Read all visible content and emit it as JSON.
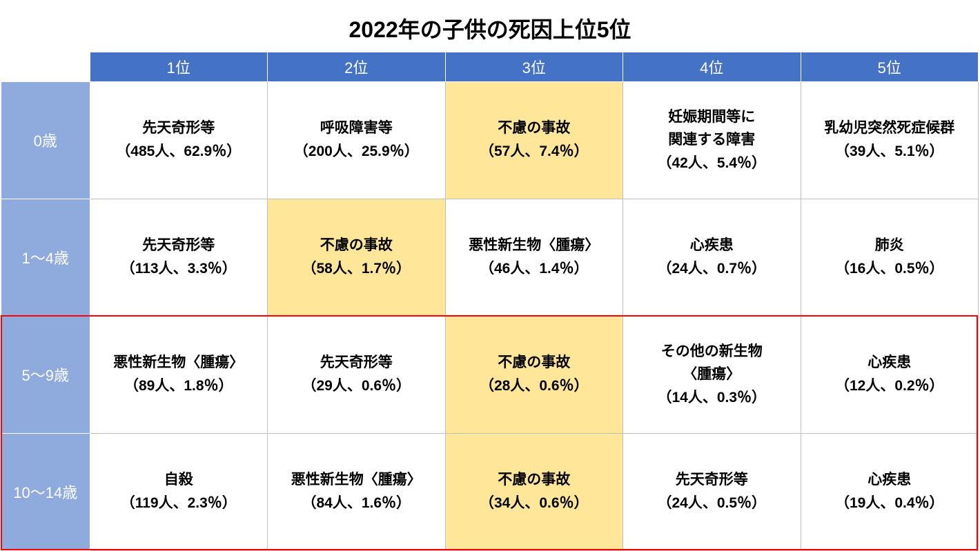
{
  "title": "2022年の子供の死因上位5位",
  "colors": {
    "col_header_bg": "#4472c4",
    "row_header_bg": "#8faadc",
    "header_text": "#ffffff",
    "highlight_bg": "#ffe699",
    "cell_bg": "#ffffff",
    "cell_text": "#000000",
    "border": "#bfbfbf",
    "red_outline": "#ff0000"
  },
  "columns": [
    "1位",
    "2位",
    "3位",
    "4位",
    "5位"
  ],
  "row_labels": [
    "0歳",
    "1～4歳",
    "5～9歳",
    "10～14歳"
  ],
  "rows": [
    [
      {
        "cause": "先天奇形等",
        "stat": "（485人、62.9％）",
        "highlight": false
      },
      {
        "cause": "呼吸障害等",
        "stat": "（200人、25.9％）",
        "highlight": false
      },
      {
        "cause": "不慮の事故",
        "stat": "（57人、7.4％）",
        "highlight": true
      },
      {
        "cause": "妊娠期間等に\n関連する障害",
        "stat": "（42人、5.4％）",
        "highlight": false
      },
      {
        "cause": "乳幼児突然死症候群",
        "stat": "（39人、5.1％）",
        "highlight": false
      }
    ],
    [
      {
        "cause": "先天奇形等",
        "stat": "（113人、3.3％）",
        "highlight": false
      },
      {
        "cause": "不慮の事故",
        "stat": "（58人、1.7％）",
        "highlight": true
      },
      {
        "cause": "悪性新生物〈腫瘍〉",
        "stat": "（46人、1.4％）",
        "highlight": false
      },
      {
        "cause": "心疾患",
        "stat": "（24人、0.7％）",
        "highlight": false
      },
      {
        "cause": "肺炎",
        "stat": "（16人、0.5％）",
        "highlight": false
      }
    ],
    [
      {
        "cause": "悪性新生物〈腫瘍〉",
        "stat": "（89人、1.8％）",
        "highlight": false
      },
      {
        "cause": "先天奇形等",
        "stat": "（29人、0.6％）",
        "highlight": false
      },
      {
        "cause": "不慮の事故",
        "stat": "（28人、0.6％）",
        "highlight": true
      },
      {
        "cause": "その他の新生物\n〈腫瘍〉",
        "stat": "（14人、0.3％）",
        "highlight": false
      },
      {
        "cause": "心疾患",
        "stat": "（12人、0.2％）",
        "highlight": false
      }
    ],
    [
      {
        "cause": "自殺",
        "stat": "（119人、2.3％）",
        "highlight": false
      },
      {
        "cause": "悪性新生物〈腫瘍〉",
        "stat": "（84人、1.6％）",
        "highlight": false
      },
      {
        "cause": "不慮の事故",
        "stat": "（34人、0.6％）",
        "highlight": true
      },
      {
        "cause": "先天奇形等",
        "stat": "（24人、0.5％）",
        "highlight": false
      },
      {
        "cause": "心疾患",
        "stat": "（19人、0.4％）",
        "highlight": false
      }
    ]
  ],
  "red_outline_rows": [
    2,
    3
  ]
}
